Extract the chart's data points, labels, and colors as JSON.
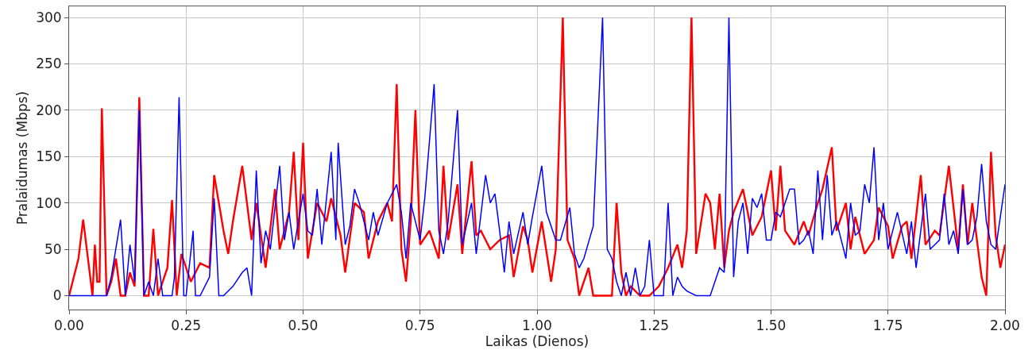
{
  "chart_data": {
    "type": "line",
    "xlabel": "Laikas (Dienos)",
    "ylabel": "Pralaidumas (Mbps)",
    "xlim": [
      0,
      2
    ],
    "ylim": [
      -15,
      312
    ],
    "xticks": [
      {
        "value": 0,
        "label": "0.00"
      },
      {
        "value": 0.25,
        "label": "0.25"
      },
      {
        "value": 0.5,
        "label": "0.50"
      },
      {
        "value": 0.75,
        "label": "0.75"
      },
      {
        "value": 1,
        "label": "1.00"
      },
      {
        "value": 1.25,
        "label": "1.25"
      },
      {
        "value": 1.5,
        "label": "1.50"
      },
      {
        "value": 1.75,
        "label": "1.75"
      },
      {
        "value": 2,
        "label": "2.00"
      }
    ],
    "yticks": [
      0,
      50,
      100,
      150,
      200,
      250,
      300
    ],
    "grid": true,
    "line_style": "solid",
    "series": [
      {
        "color": "#ff0000",
        "x": [
          0,
          0.02,
          0.03,
          0.05,
          0.055,
          0.06,
          0.065,
          0.07,
          0.08,
          0.09,
          0.1,
          0.11,
          0.12,
          0.13,
          0.14,
          0.15,
          0.16,
          0.17,
          0.18,
          0.19,
          0.21,
          0.22,
          0.23,
          0.24,
          0.26,
          0.28,
          0.3,
          0.31,
          0.33,
          0.34,
          0.35,
          0.37,
          0.39,
          0.4,
          0.42,
          0.44,
          0.45,
          0.47,
          0.48,
          0.49,
          0.5,
          0.51,
          0.53,
          0.55,
          0.56,
          0.58,
          0.59,
          0.61,
          0.63,
          0.64,
          0.66,
          0.68,
          0.69,
          0.7,
          0.71,
          0.72,
          0.73,
          0.74,
          0.75,
          0.77,
          0.79,
          0.8,
          0.81,
          0.83,
          0.84,
          0.86,
          0.87,
          0.88,
          0.9,
          0.92,
          0.94,
          0.95,
          0.97,
          0.98,
          0.99,
          1.01,
          1.03,
          1.04,
          1.055,
          1.065,
          1.08,
          1.09,
          1.11,
          1.12,
          1.14,
          1.16,
          1.17,
          1.18,
          1.19,
          1.2,
          1.22,
          1.23,
          1.24,
          1.26,
          1.28,
          1.3,
          1.31,
          1.32,
          1.33,
          1.34,
          1.36,
          1.37,
          1.38,
          1.39,
          1.4,
          1.41,
          1.42,
          1.44,
          1.46,
          1.48,
          1.5,
          1.51,
          1.52,
          1.53,
          1.55,
          1.57,
          1.58,
          1.6,
          1.61,
          1.63,
          1.64,
          1.66,
          1.67,
          1.68,
          1.7,
          1.72,
          1.73,
          1.75,
          1.76,
          1.78,
          1.79,
          1.8,
          1.82,
          1.83,
          1.85,
          1.86,
          1.88,
          1.9,
          1.91,
          1.92,
          1.93,
          1.95,
          1.96,
          1.97,
          1.98,
          1.99,
          2.0
        ],
        "values": [
          0,
          40,
          82,
          0,
          55,
          15,
          15,
          202,
          0,
          15,
          40,
          0,
          0,
          25,
          10,
          214,
          0,
          0,
          72,
          0,
          30,
          103,
          0,
          45,
          15,
          35,
          30,
          130,
          70,
          45,
          80,
          140,
          60,
          100,
          30,
          115,
          50,
          90,
          155,
          60,
          165,
          40,
          100,
          80,
          105,
          65,
          25,
          100,
          90,
          40,
          80,
          100,
          80,
          228,
          50,
          15,
          80,
          200,
          55,
          70,
          40,
          140,
          60,
          120,
          45,
          145,
          65,
          70,
          50,
          60,
          65,
          20,
          75,
          60,
          25,
          80,
          15,
          50,
          300,
          60,
          40,
          0,
          30,
          0,
          0,
          0,
          100,
          25,
          0,
          10,
          0,
          0,
          0,
          10,
          30,
          55,
          30,
          70,
          300,
          45,
          110,
          100,
          50,
          110,
          30,
          70,
          90,
          115,
          65,
          85,
          135,
          70,
          140,
          70,
          55,
          80,
          65,
          100,
          115,
          160,
          70,
          100,
          50,
          85,
          45,
          60,
          95,
          75,
          40,
          75,
          80,
          40,
          130,
          55,
          70,
          65,
          140,
          50,
          120,
          55,
          100,
          20,
          0,
          155,
          65,
          30,
          55
        ]
      },
      {
        "color": "#0000ff",
        "x": [
          0,
          0.05,
          0.08,
          0.09,
          0.11,
          0.12,
          0.13,
          0.14,
          0.15,
          0.16,
          0.17,
          0.18,
          0.19,
          0.2,
          0.22,
          0.225,
          0.235,
          0.245,
          0.25,
          0.265,
          0.27,
          0.28,
          0.3,
          0.31,
          0.32,
          0.33,
          0.35,
          0.37,
          0.38,
          0.39,
          0.4,
          0.41,
          0.42,
          0.43,
          0.45,
          0.46,
          0.47,
          0.48,
          0.5,
          0.51,
          0.52,
          0.53,
          0.54,
          0.56,
          0.57,
          0.575,
          0.59,
          0.6,
          0.61,
          0.62,
          0.64,
          0.65,
          0.66,
          0.68,
          0.7,
          0.71,
          0.72,
          0.73,
          0.75,
          0.76,
          0.78,
          0.79,
          0.8,
          0.81,
          0.83,
          0.84,
          0.86,
          0.87,
          0.89,
          0.9,
          0.91,
          0.92,
          0.93,
          0.94,
          0.95,
          0.97,
          0.98,
          0.99,
          1.01,
          1.02,
          1.04,
          1.05,
          1.07,
          1.08,
          1.09,
          1.1,
          1.12,
          1.14,
          1.15,
          1.16,
          1.17,
          1.18,
          1.19,
          1.2,
          1.21,
          1.22,
          1.23,
          1.24,
          1.25,
          1.26,
          1.27,
          1.28,
          1.29,
          1.3,
          1.31,
          1.32,
          1.34,
          1.36,
          1.37,
          1.38,
          1.39,
          1.4,
          1.41,
          1.42,
          1.43,
          1.44,
          1.45,
          1.46,
          1.47,
          1.48,
          1.49,
          1.5,
          1.51,
          1.52,
          1.53,
          1.54,
          1.55,
          1.56,
          1.57,
          1.58,
          1.59,
          1.6,
          1.61,
          1.62,
          1.63,
          1.64,
          1.65,
          1.66,
          1.67,
          1.68,
          1.69,
          1.7,
          1.71,
          1.72,
          1.73,
          1.74,
          1.75,
          1.77,
          1.79,
          1.8,
          1.81,
          1.83,
          1.84,
          1.85,
          1.86,
          1.87,
          1.88,
          1.89,
          1.9,
          1.91,
          1.92,
          1.93,
          1.94,
          1.95,
          1.96,
          1.97,
          1.98,
          2.0
        ],
        "values": [
          0,
          0,
          0,
          20,
          82,
          0,
          55,
          15,
          200,
          0,
          15,
          0,
          40,
          0,
          0,
          20,
          214,
          0,
          0,
          70,
          0,
          0,
          20,
          105,
          0,
          0,
          10,
          25,
          30,
          0,
          135,
          35,
          70,
          50,
          140,
          60,
          90,
          50,
          110,
          70,
          65,
          115,
          55,
          155,
          60,
          165,
          55,
          75,
          115,
          100,
          60,
          90,
          65,
          100,
          120,
          90,
          40,
          100,
          60,
          105,
          228,
          70,
          45,
          80,
          200,
          55,
          100,
          45,
          130,
          100,
          110,
          70,
          25,
          80,
          45,
          90,
          55,
          85,
          140,
          90,
          60,
          60,
          95,
          45,
          30,
          40,
          75,
          300,
          50,
          40,
          15,
          0,
          25,
          0,
          30,
          0,
          10,
          60,
          0,
          0,
          0,
          100,
          0,
          20,
          10,
          5,
          0,
          0,
          0,
          15,
          30,
          25,
          300,
          20,
          80,
          100,
          45,
          105,
          95,
          110,
          60,
          60,
          90,
          85,
          100,
          115,
          115,
          55,
          60,
          70,
          45,
          135,
          60,
          130,
          65,
          80,
          60,
          40,
          100,
          65,
          70,
          120,
          100,
          160,
          60,
          100,
          50,
          90,
          45,
          80,
          30,
          110,
          50,
          55,
          60,
          110,
          55,
          70,
          45,
          115,
          55,
          60,
          85,
          142,
          80,
          55,
          50,
          120
        ]
      }
    ]
  }
}
